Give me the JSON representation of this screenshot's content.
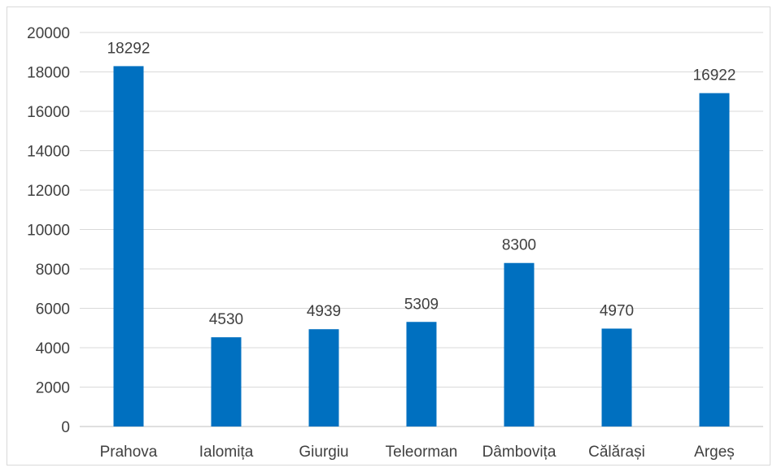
{
  "chart_data": {
    "type": "bar",
    "categories": [
      "Prahova",
      "Ialomița",
      "Giurgiu",
      "Teleorman",
      "Dâmbovița",
      "Călărași",
      "Argeș"
    ],
    "series": [
      {
        "values": [
          18292,
          4530,
          4939,
          5309,
          8300,
          4970,
          16922
        ],
        "color": "#0070c0"
      }
    ],
    "ylim": [
      0,
      20000
    ],
    "yticks": [
      0,
      2000,
      4000,
      6000,
      8000,
      10000,
      12000,
      14000,
      16000,
      18000,
      20000
    ],
    "grid": true,
    "legend": "none",
    "data_labels": true,
    "title": "",
    "xlabel": "",
    "ylabel": ""
  }
}
